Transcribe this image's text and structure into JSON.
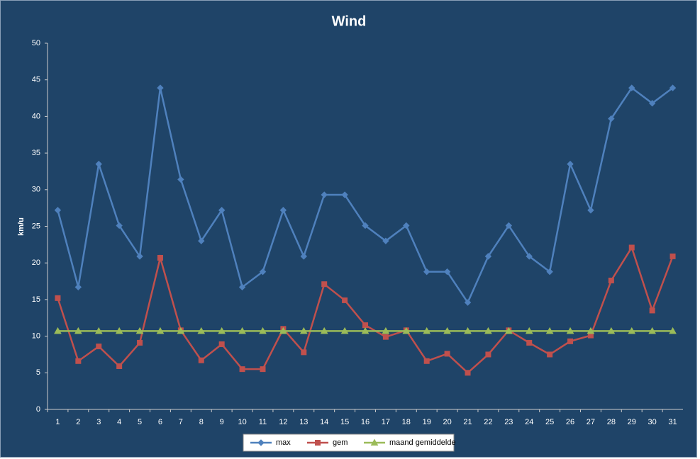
{
  "chart_data": {
    "type": "line",
    "title": "Wind",
    "y_label": "km/u",
    "categories": [
      1,
      2,
      3,
      4,
      5,
      6,
      7,
      8,
      9,
      10,
      11,
      12,
      13,
      14,
      15,
      16,
      17,
      18,
      19,
      20,
      21,
      22,
      23,
      24,
      25,
      26,
      27,
      28,
      29,
      30,
      31
    ],
    "series": [
      {
        "name": "max",
        "color": "#4f81bd",
        "marker": "diamond",
        "values": [
          27.2,
          16.7,
          33.5,
          25.1,
          20.9,
          43.9,
          31.4,
          23.0,
          27.2,
          16.7,
          18.8,
          27.2,
          20.9,
          29.3,
          29.3,
          25.1,
          23.0,
          25.1,
          18.8,
          18.8,
          14.6,
          20.9,
          25.1,
          20.9,
          18.8,
          33.5,
          27.2,
          39.7,
          43.9,
          41.8,
          43.9
        ]
      },
      {
        "name": "gem",
        "color": "#c0504d",
        "marker": "square",
        "values": [
          15.2,
          6.6,
          8.6,
          5.9,
          9.1,
          20.7,
          10.8,
          6.7,
          8.9,
          5.5,
          5.5,
          11.0,
          7.8,
          17.1,
          14.9,
          11.5,
          9.9,
          10.8,
          6.6,
          7.6,
          5.0,
          7.5,
          10.8,
          9.1,
          7.5,
          9.3,
          10.1,
          17.6,
          22.1,
          13.5,
          20.9
        ]
      },
      {
        "name": "maand gemiddelde",
        "color": "#9bbb59",
        "marker": "triangle",
        "values": [
          10.7,
          10.7,
          10.7,
          10.7,
          10.7,
          10.7,
          10.7,
          10.7,
          10.7,
          10.7,
          10.7,
          10.7,
          10.7,
          10.7,
          10.7,
          10.7,
          10.7,
          10.7,
          10.7,
          10.7,
          10.7,
          10.7,
          10.7,
          10.7,
          10.7,
          10.7,
          10.7,
          10.7,
          10.7,
          10.7,
          10.7
        ]
      }
    ],
    "ylim": [
      0,
      50
    ],
    "yticks": [
      0,
      5,
      10,
      15,
      20,
      25,
      30,
      35,
      40,
      45,
      50
    ],
    "grid": false,
    "legend": "bottom"
  }
}
